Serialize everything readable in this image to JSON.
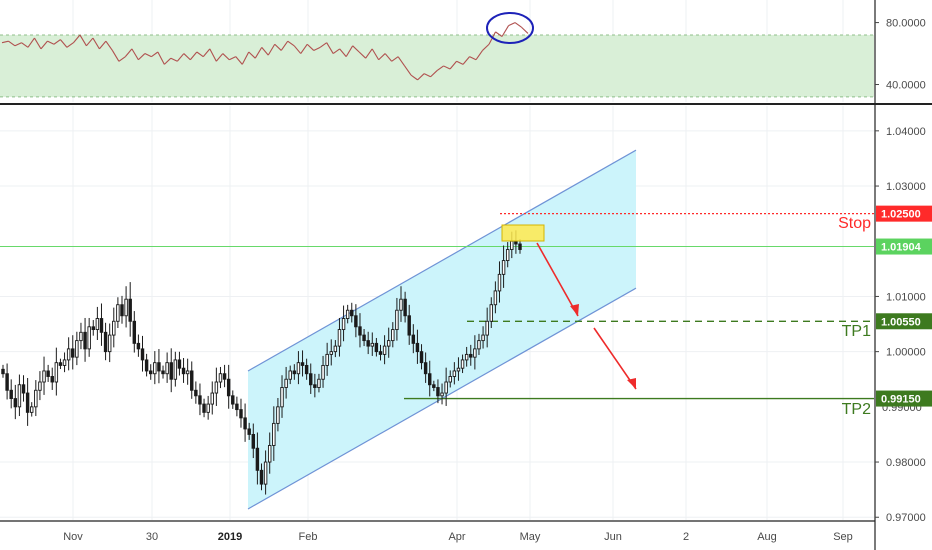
{
  "colors": {
    "channel_fill": "#ccf4fb",
    "channel_line": "#6f93d6",
    "rsi_band": "#d9efd7",
    "rsi_line": "#b0514f",
    "candle": "#1b1b1b",
    "grid": "#eef0f3",
    "stop": "#ff2a2a",
    "target": "#3d7a1f",
    "price_line": "#67d96a",
    "highlight_box": "#ffe94d",
    "circle": "#1d22b8"
  },
  "chart_data": [
    {
      "type": "line",
      "panel": "indicator",
      "ylim": [
        30,
        92
      ],
      "ytick_labels": [
        "80.0000",
        "40.0000"
      ],
      "band": [
        32,
        72
      ],
      "circled_peak": 78,
      "values": [
        67,
        68,
        65,
        67,
        64,
        70,
        63,
        68,
        66,
        69,
        64,
        67,
        72,
        65,
        70,
        63,
        68,
        62,
        55,
        58,
        63,
        56,
        60,
        58,
        61,
        53,
        57,
        55,
        60,
        56,
        61,
        58,
        63,
        55,
        60,
        56,
        58,
        53,
        61,
        57,
        64,
        59,
        66,
        62,
        68,
        65,
        60,
        66,
        62,
        64,
        67,
        60,
        63,
        58,
        65,
        61,
        57,
        63,
        56,
        60,
        55,
        58,
        52,
        46,
        43,
        47,
        45,
        49,
        52,
        50,
        55,
        53,
        58,
        56,
        62,
        66,
        74,
        71,
        78,
        80,
        77,
        73
      ]
    },
    {
      "type": "candlestick",
      "panel": "price",
      "ylim": [
        0.9695,
        1.0445
      ],
      "ytick_labels": [
        "1.04000",
        "1.03000",
        "1.01000",
        "1.00000",
        "0.98000",
        "0.97000"
      ],
      "price_labels": [
        {
          "value": 1.025,
          "label": "1.02500",
          "name": "Stop",
          "color": "#ff2a2a"
        },
        {
          "value": 1.01904,
          "label": "1.01904",
          "name": "",
          "color": "#5bd35f"
        },
        {
          "value": 1.0055,
          "label": "1.00550",
          "name": "TP1",
          "color": "#3d7a1f"
        },
        {
          "value": 0.9915,
          "label": "0.99150",
          "name": "TP2",
          "color": "#3d7a1f"
        }
      ],
      "channel": {
        "lower_start": 0.9715,
        "lower_end": 1.0115,
        "upper_start": 0.9965,
        "upper_end": 1.0365
      },
      "partial_tick_label": "0.99000",
      "x_labels": [
        "Nov",
        "30",
        "2019",
        "Feb",
        "Apr",
        "May",
        "Jun",
        "2",
        "Aug",
        "Sep"
      ],
      "closes": [
        0.996,
        0.993,
        0.9915,
        0.99,
        0.994,
        0.9925,
        0.989,
        0.99,
        0.993,
        0.9945,
        0.9965,
        0.9955,
        0.9945,
        0.998,
        0.9975,
        0.9985,
        1.0005,
        0.999,
        1.002,
        1.0035,
        1.0005,
        1.0045,
        1.004,
        1.006,
        1.0035,
        1.0,
        1.003,
        1.0055,
        1.0085,
        1.0065,
        1.0095,
        1.0055,
        1.0015,
        1.0005,
        0.9985,
        0.9965,
        0.996,
        0.998,
        0.9965,
        0.996,
        0.998,
        0.995,
        0.9985,
        0.997,
        0.996,
        0.9965,
        0.993,
        0.992,
        0.9905,
        0.989,
        0.9905,
        0.9925,
        0.9945,
        0.996,
        0.995,
        0.992,
        0.9905,
        0.9895,
        0.988,
        0.986,
        0.985,
        0.9825,
        0.9785,
        0.976,
        0.98,
        0.983,
        0.987,
        0.99,
        0.9935,
        0.995,
        0.9965,
        0.996,
        0.998,
        0.9975,
        0.996,
        0.994,
        0.9935,
        0.995,
        0.9975,
        0.9995,
        1.0,
        1.001,
        1.004,
        1.006,
        1.0075,
        1.0065,
        1.0045,
        1.003,
        1.002,
        1.001,
        1.0015,
        1.0,
        0.9995,
        1.001,
        1.002,
        1.004,
        1.0075,
        1.0095,
        1.0065,
        1.003,
        1.0015,
        1.0,
        0.998,
        0.996,
        0.994,
        0.9935,
        0.992,
        0.9925,
        0.9945,
        0.9955,
        0.9965,
        0.997,
        0.9985,
        0.9995,
        0.999,
        1.0005,
        1.002,
        1.003,
        1.0055,
        1.0085,
        1.011,
        1.014,
        1.0165,
        1.0185,
        1.02,
        1.0195,
        1.0185
      ]
    }
  ]
}
